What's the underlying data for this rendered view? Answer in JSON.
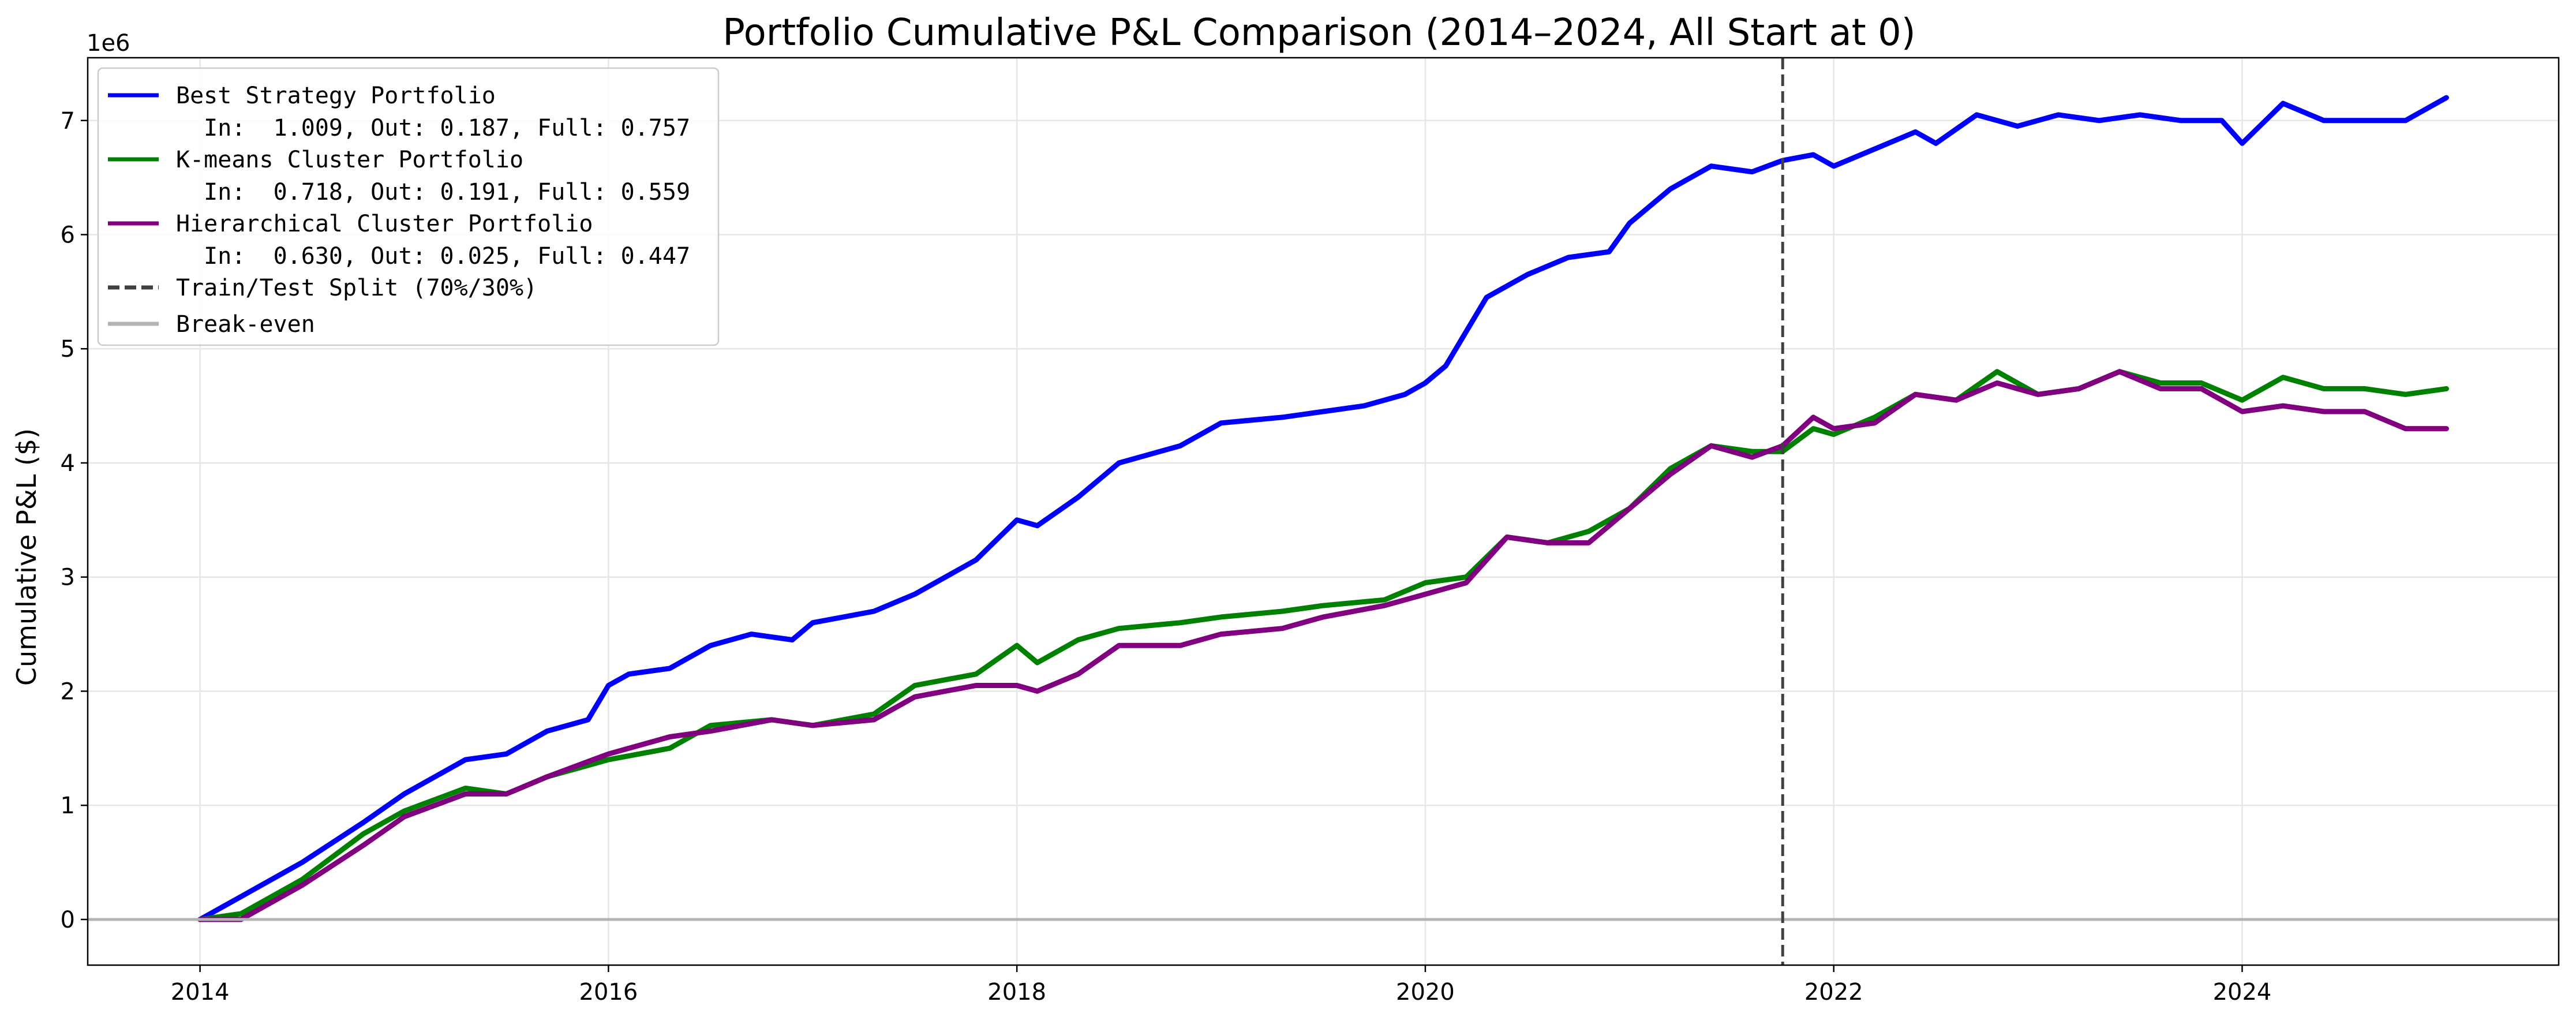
{
  "chart_data": {
    "type": "line",
    "title": "Portfolio Cumulative P&L Comparison (2014–2024, All Start at 0)",
    "xlabel": "",
    "ylabel": "Cumulative P&L ($)",
    "y_offset_label": "1e6",
    "xlim": [
      2013.45,
      2025.55
    ],
    "ylim": [
      -400000,
      7550000
    ],
    "x_ticks": [
      2014,
      2016,
      2018,
      2020,
      2022,
      2024
    ],
    "x_tick_labels": [
      "2014",
      "2016",
      "2018",
      "2020",
      "2022",
      "2024"
    ],
    "y_ticks": [
      0,
      1,
      2,
      3,
      4,
      5,
      6,
      7
    ],
    "y_tick_labels": [
      "0",
      "1",
      "2",
      "3",
      "4",
      "5",
      "6",
      "7"
    ],
    "grid": true,
    "legend_position": "upper-left",
    "series": [
      {
        "name": "Best Strategy Portfolio",
        "stats": "  In:  1.009, Out: 0.187, Full: 0.757",
        "color": "#0000ff",
        "x": [
          2014.0,
          2014.2,
          2014.5,
          2014.8,
          2015.0,
          2015.3,
          2015.5,
          2015.7,
          2015.9,
          2016.0,
          2016.1,
          2016.3,
          2016.5,
          2016.7,
          2016.9,
          2017.0,
          2017.3,
          2017.5,
          2017.8,
          2018.0,
          2018.1,
          2018.3,
          2018.5,
          2018.8,
          2019.0,
          2019.3,
          2019.5,
          2019.7,
          2019.9,
          2020.0,
          2020.1,
          2020.3,
          2020.5,
          2020.7,
          2020.9,
          2021.0,
          2021.2,
          2021.4,
          2021.6,
          2021.75,
          2021.9,
          2022.0,
          2022.2,
          2022.4,
          2022.5,
          2022.7,
          2022.9,
          2023.1,
          2023.3,
          2023.5,
          2023.7,
          2023.9,
          2024.0,
          2024.2,
          2024.4,
          2024.6,
          2024.8,
          2025.0
        ],
        "values": [
          0,
          200000,
          500000,
          850000,
          1100000,
          1400000,
          1450000,
          1650000,
          1750000,
          2050000,
          2150000,
          2200000,
          2400000,
          2500000,
          2450000,
          2600000,
          2700000,
          2850000,
          3150000,
          3500000,
          3450000,
          3700000,
          4000000,
          4150000,
          4350000,
          4400000,
          4450000,
          4500000,
          4600000,
          4700000,
          4850000,
          5450000,
          5650000,
          5800000,
          5850000,
          6100000,
          6400000,
          6600000,
          6550000,
          6650000,
          6700000,
          6600000,
          6750000,
          6900000,
          6800000,
          7050000,
          6950000,
          7050000,
          7000000,
          7050000,
          7000000,
          7000000,
          6800000,
          7150000,
          7000000,
          7000000,
          7000000,
          7200000
        ]
      },
      {
        "name": "K-means Cluster Portfolio",
        "stats": "  In:  0.718, Out: 0.191, Full: 0.559",
        "color": "#008000",
        "x": [
          2014.0,
          2014.2,
          2014.5,
          2014.8,
          2015.0,
          2015.3,
          2015.5,
          2015.7,
          2016.0,
          2016.3,
          2016.5,
          2016.8,
          2017.0,
          2017.3,
          2017.5,
          2017.8,
          2018.0,
          2018.1,
          2018.3,
          2018.5,
          2018.8,
          2019.0,
          2019.3,
          2019.5,
          2019.8,
          2020.0,
          2020.2,
          2020.4,
          2020.6,
          2020.8,
          2021.0,
          2021.2,
          2021.4,
          2021.6,
          2021.75,
          2021.9,
          2022.0,
          2022.2,
          2022.4,
          2022.6,
          2022.8,
          2023.0,
          2023.2,
          2023.4,
          2023.6,
          2023.8,
          2024.0,
          2024.2,
          2024.4,
          2024.6,
          2024.8,
          2025.0
        ],
        "values": [
          0,
          50000,
          350000,
          750000,
          950000,
          1150000,
          1100000,
          1250000,
          1400000,
          1500000,
          1700000,
          1750000,
          1700000,
          1800000,
          2050000,
          2150000,
          2400000,
          2250000,
          2450000,
          2550000,
          2600000,
          2650000,
          2700000,
          2750000,
          2800000,
          2950000,
          3000000,
          3350000,
          3300000,
          3400000,
          3600000,
          3950000,
          4150000,
          4100000,
          4100000,
          4300000,
          4250000,
          4400000,
          4600000,
          4550000,
          4800000,
          4600000,
          4650000,
          4800000,
          4700000,
          4700000,
          4550000,
          4750000,
          4650000,
          4650000,
          4600000,
          4650000
        ]
      },
      {
        "name": "Hierarchical Cluster Portfolio",
        "stats": "  In:  0.630, Out: 0.025, Full: 0.447",
        "color": "#800080",
        "x": [
          2014.0,
          2014.2,
          2014.5,
          2014.8,
          2015.0,
          2015.3,
          2015.5,
          2015.7,
          2016.0,
          2016.3,
          2016.5,
          2016.8,
          2017.0,
          2017.3,
          2017.5,
          2017.8,
          2018.0,
          2018.1,
          2018.3,
          2018.5,
          2018.8,
          2019.0,
          2019.3,
          2019.5,
          2019.8,
          2020.0,
          2020.2,
          2020.4,
          2020.6,
          2020.8,
          2021.0,
          2021.2,
          2021.4,
          2021.6,
          2021.75,
          2021.9,
          2022.0,
          2022.2,
          2022.4,
          2022.6,
          2022.8,
          2023.0,
          2023.2,
          2023.4,
          2023.6,
          2023.8,
          2024.0,
          2024.2,
          2024.4,
          2024.6,
          2024.8,
          2025.0
        ],
        "values": [
          0,
          0,
          300000,
          650000,
          900000,
          1100000,
          1100000,
          1250000,
          1450000,
          1600000,
          1650000,
          1750000,
          1700000,
          1750000,
          1950000,
          2050000,
          2050000,
          2000000,
          2150000,
          2400000,
          2400000,
          2500000,
          2550000,
          2650000,
          2750000,
          2850000,
          2950000,
          3350000,
          3300000,
          3300000,
          3600000,
          3900000,
          4150000,
          4050000,
          4150000,
          4400000,
          4300000,
          4350000,
          4600000,
          4550000,
          4700000,
          4600000,
          4650000,
          4800000,
          4650000,
          4650000,
          4450000,
          4500000,
          4450000,
          4450000,
          4300000,
          4300000
        ]
      }
    ],
    "vline": {
      "x": 2021.75,
      "label": "Train/Test Split (70%/30%)",
      "color": "#404040"
    },
    "hline": {
      "y": 0,
      "label": "Break-even",
      "color": "#b3b3b3"
    }
  }
}
